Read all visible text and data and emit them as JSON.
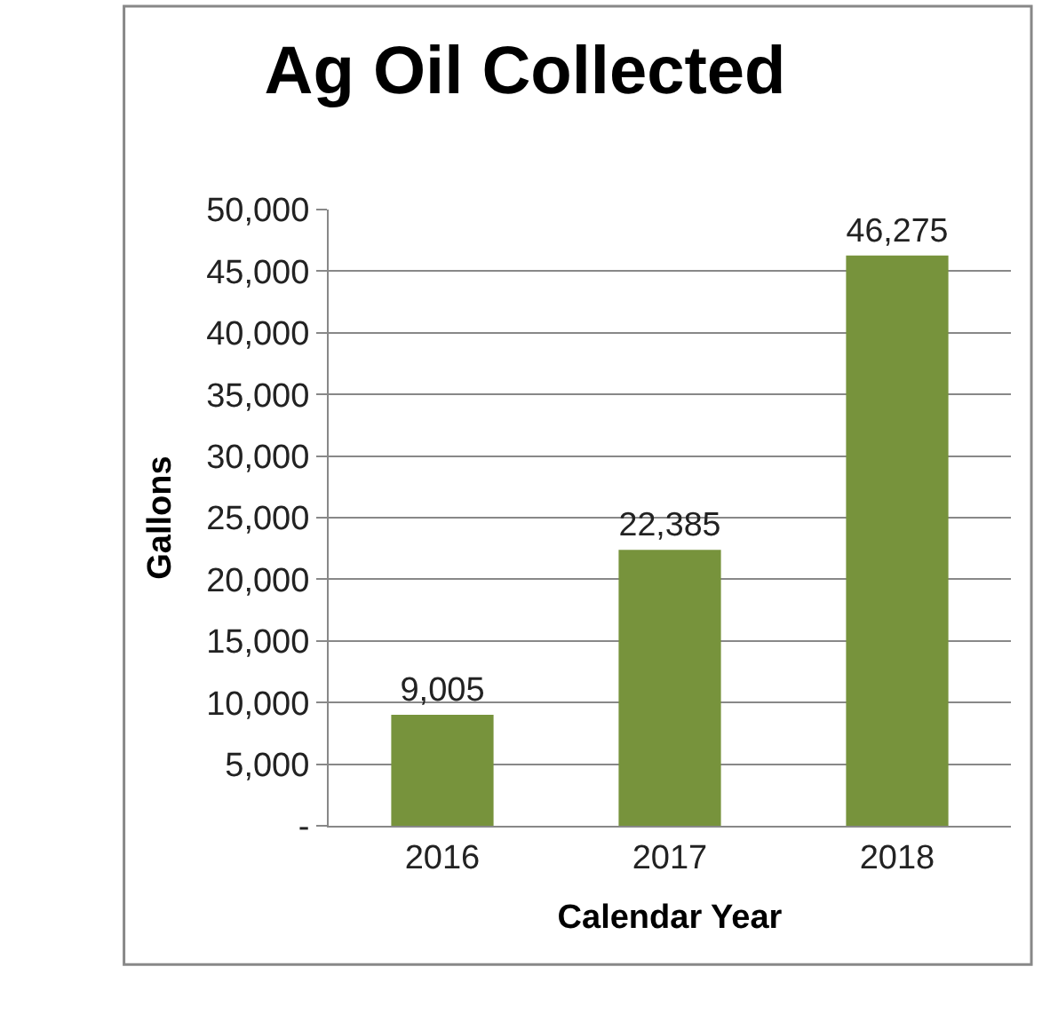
{
  "chart_data": {
    "type": "bar",
    "title": "Ag Oil Collected",
    "xlabel": "Calendar Year",
    "ylabel": "Gallons",
    "categories": [
      "2016",
      "2017",
      "2018"
    ],
    "values": [
      9005,
      22385,
      46275
    ],
    "color": "#77933c",
    "value_labels": [
      "9,005",
      "22,385",
      "46,275"
    ],
    "ylim": [
      0,
      50000
    ],
    "yticks": [
      {
        "value": 0,
        "label": "-"
      },
      {
        "value": 5000,
        "label": "5,000"
      },
      {
        "value": 10000,
        "label": "10,000"
      },
      {
        "value": 15000,
        "label": "15,000"
      },
      {
        "value": 20000,
        "label": "20,000"
      },
      {
        "value": 25000,
        "label": "25,000"
      },
      {
        "value": 30000,
        "label": "30,000"
      },
      {
        "value": 35000,
        "label": "35,000"
      },
      {
        "value": 40000,
        "label": "40,000"
      },
      {
        "value": 45000,
        "label": "45,000"
      },
      {
        "value": 50000,
        "label": "50,000"
      }
    ],
    "grid": "y"
  }
}
